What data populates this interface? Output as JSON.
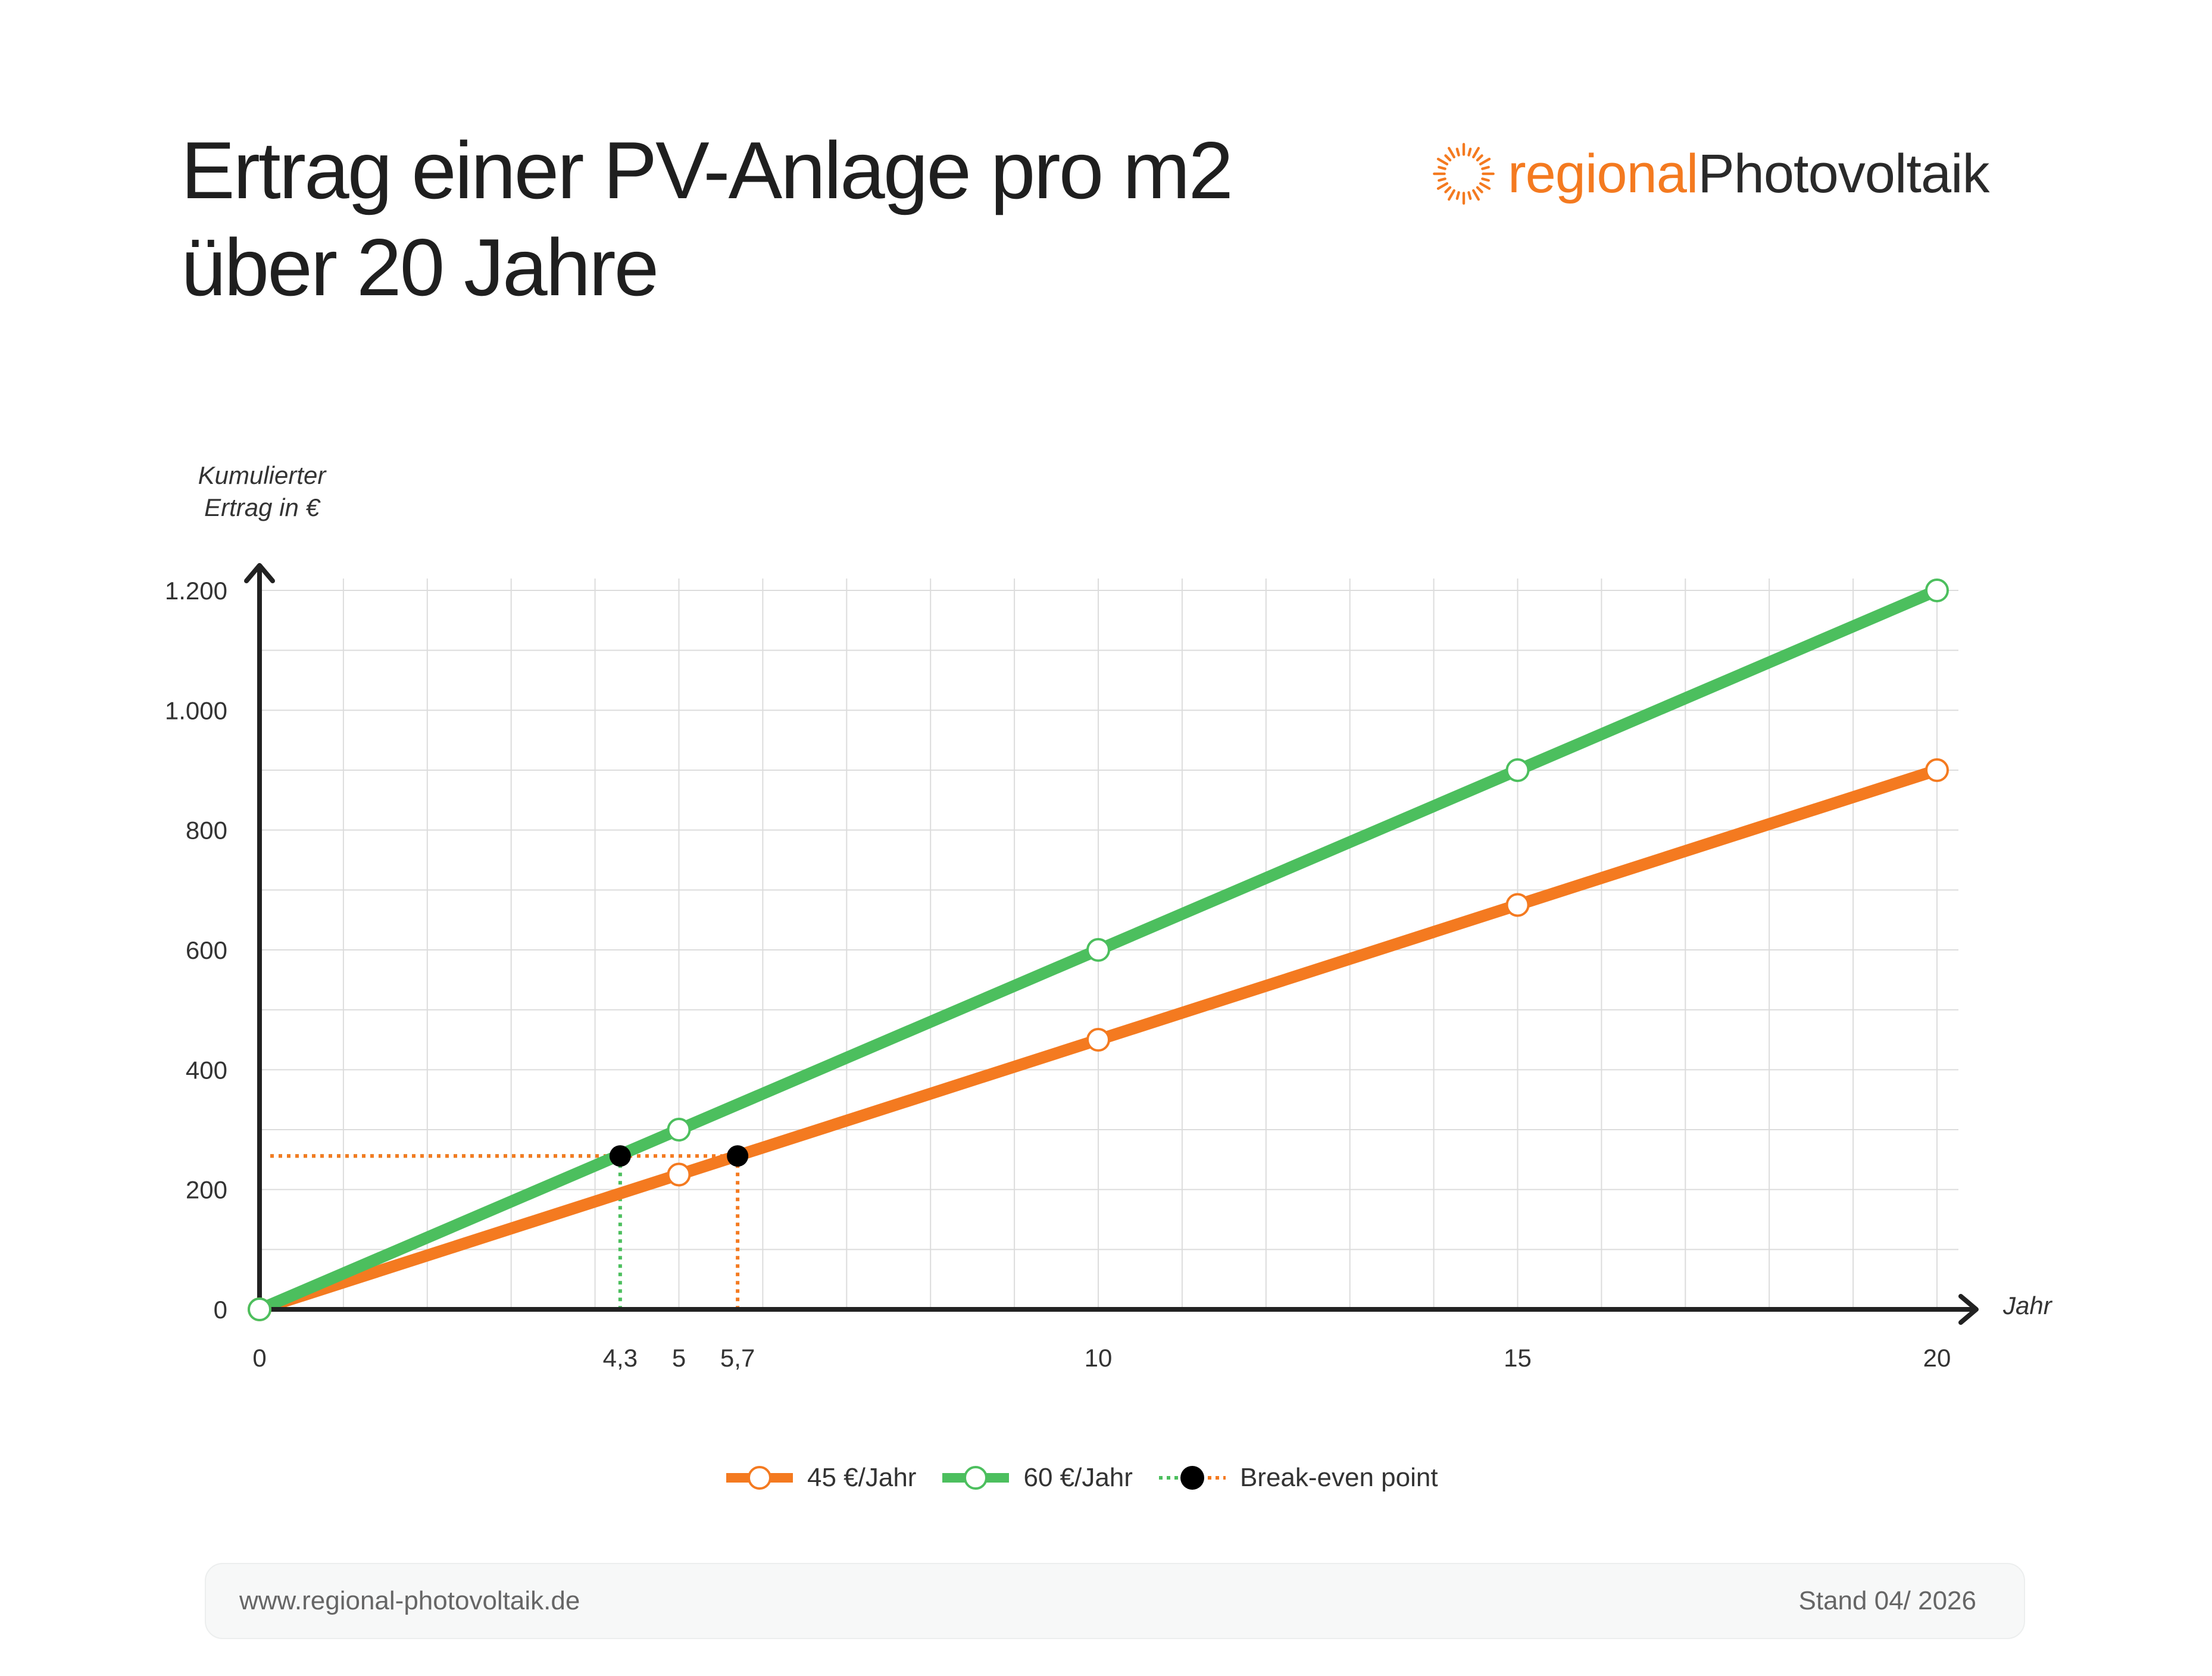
{
  "header": {
    "title_line1": "Ertrag einer PV-Anlage pro m2",
    "title_line2": "über 20 Jahre",
    "brand_part1": "regional",
    "brand_part2": "Photovoltaik",
    "brand_icon": "sun-icon",
    "brand_color": "#f47a20"
  },
  "chart_data": {
    "type": "line",
    "ylabel_line1": "Kumulierter",
    "ylabel_line2": "Ertrag in €",
    "xlabel": "Jahr",
    "xlim": [
      0,
      20
    ],
    "ylim": [
      0,
      1200
    ],
    "grid": true,
    "x_ticks": [
      {
        "value": 0,
        "label": "0"
      },
      {
        "value": 4.3,
        "label": "4,3"
      },
      {
        "value": 5,
        "label": "5"
      },
      {
        "value": 5.7,
        "label": "5,7"
      },
      {
        "value": 10,
        "label": "10"
      },
      {
        "value": 15,
        "label": "15"
      },
      {
        "value": 20,
        "label": "20"
      }
    ],
    "y_ticks": [
      {
        "value": 0,
        "label": "0"
      },
      {
        "value": 200,
        "label": "200"
      },
      {
        "value": 400,
        "label": "400"
      },
      {
        "value": 600,
        "label": "600"
      },
      {
        "value": 800,
        "label": "800"
      },
      {
        "value": 1000,
        "label": "1.000"
      },
      {
        "value": 1200,
        "label": "1.200"
      }
    ],
    "series": [
      {
        "name": "45 €/Jahr",
        "color": "#f47a20",
        "points": [
          [
            0,
            0
          ],
          [
            5,
            225
          ],
          [
            10,
            450
          ],
          [
            15,
            675
          ],
          [
            20,
            900
          ]
        ]
      },
      {
        "name": "60 €/Jahr",
        "color": "#4cbf5e",
        "points": [
          [
            0,
            0
          ],
          [
            5,
            300
          ],
          [
            10,
            600
          ],
          [
            15,
            900
          ],
          [
            20,
            1200
          ]
        ]
      }
    ],
    "break_even": {
      "name": "Break-even point",
      "y": 256,
      "points": [
        {
          "x": 4.3,
          "color": "#4cbf5e"
        },
        {
          "x": 5.7,
          "color": "#f47a20"
        }
      ]
    },
    "legend_position": "bottom-center"
  },
  "footer": {
    "url": "www.regional-photovoltaik.de",
    "stand": "Stand 04/ 2026"
  }
}
